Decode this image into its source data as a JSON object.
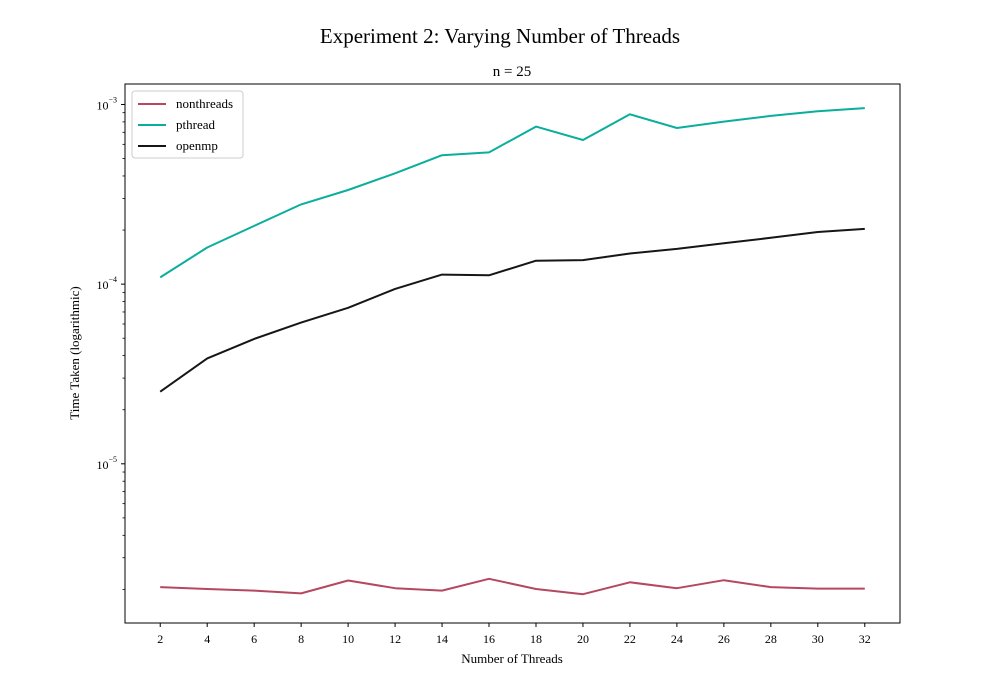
{
  "chart_data": {
    "type": "line",
    "title": "Experiment 2: Varying Number of Threads",
    "subtitle": "n = 25",
    "xlabel": "Number of Threads",
    "ylabel": "Time Taken (logarithmic)",
    "yscale": "log",
    "ylim": [
      1.3e-06,
      0.0013
    ],
    "xlim": [
      0.5,
      33.5
    ],
    "x": [
      2,
      4,
      6,
      8,
      10,
      12,
      14,
      16,
      18,
      20,
      22,
      24,
      26,
      28,
      30,
      32
    ],
    "x_tick_labels": [
      "2",
      "4",
      "6",
      "8",
      "10",
      "12",
      "14",
      "16",
      "18",
      "20",
      "22",
      "24",
      "26",
      "28",
      "30",
      "32"
    ],
    "y_ticks": [
      {
        "value": 0.001,
        "base": "10",
        "exp": "−3"
      },
      {
        "value": 0.0001,
        "base": "10",
        "exp": "−4"
      },
      {
        "value": 1e-05,
        "base": "10",
        "exp": "−5"
      }
    ],
    "grid": false,
    "legend_position": "upper left",
    "series": [
      {
        "name": "nonthreads",
        "color": "#b5485f",
        "values": [
          2.06e-06,
          2.01e-06,
          1.97e-06,
          1.9e-06,
          2.24e-06,
          2.03e-06,
          1.97e-06,
          2.29e-06,
          2.01e-06,
          1.88e-06,
          2.19e-06,
          2.03e-06,
          2.25e-06,
          2.06e-06,
          2.02e-06,
          2.02e-06
        ]
      },
      {
        "name": "pthread",
        "color": "#0aae9d",
        "values": [
          0.000109,
          0.00016,
          0.000211,
          0.000278,
          0.000334,
          0.000414,
          0.000522,
          0.000541,
          0.000753,
          0.000634,
          0.000882,
          0.00074,
          0.000803,
          0.000864,
          0.000916,
          0.000955
        ]
      },
      {
        "name": "openmp",
        "color": "#161616",
        "values": [
          2.52e-05,
          3.86e-05,
          4.96e-05,
          6.11e-05,
          7.38e-05,
          9.41e-05,
          0.000113,
          0.000112,
          0.000135,
          0.000136,
          0.000148,
          0.000157,
          0.000169,
          0.000181,
          0.000195,
          0.000203
        ]
      }
    ]
  }
}
